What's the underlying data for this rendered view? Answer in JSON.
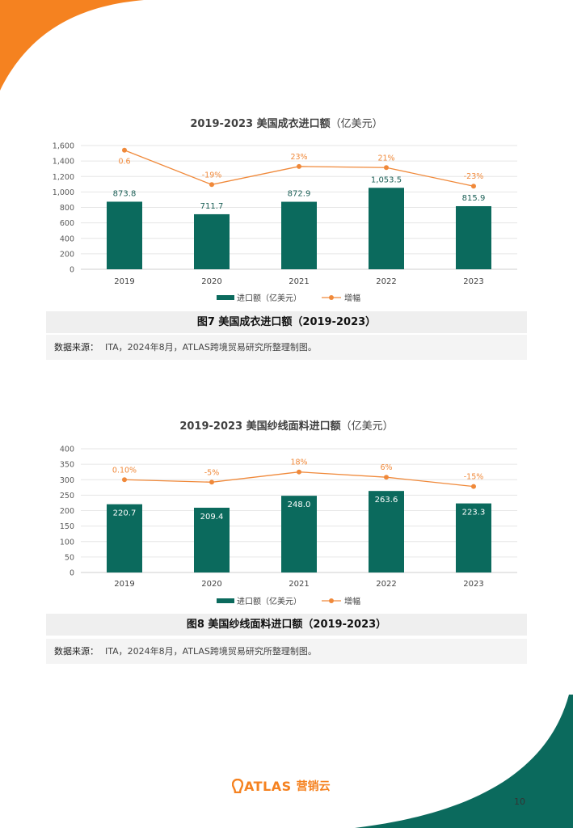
{
  "page": {
    "number": "10"
  },
  "logo": {
    "brand": "ATLAS",
    "sub": "营销云"
  },
  "colors": {
    "bar": "#0b6a5d",
    "line": "#f0893a",
    "corner_orange": "#f58220",
    "corner_teal": "#0b6a5d"
  },
  "charts": [
    {
      "title": "2019-2023 美国成衣进口额",
      "title_unit": "（亿美元）",
      "caption": "图7 美国成衣进口额（2019-2023）",
      "source_label": "数据来源：",
      "source_text": "ITA，2024年8月，ATLAS跨境贸易研究所整理制图。",
      "legend_bar": "进口额（亿美元）",
      "legend_line": "增幅"
    },
    {
      "title": "2019-2023 美国纱线面料进口额",
      "title_unit": "（亿美元）",
      "caption": "图8 美国纱线面料进口额（2019-2023）",
      "source_label": "数据来源：",
      "source_text": "ITA，2024年8月，ATLAS跨境贸易研究所整理制图。",
      "legend_bar": "进口额（亿美元）",
      "legend_line": "增幅"
    }
  ],
  "chart_data": [
    {
      "type": "bar",
      "title": "2019-2023 美国成衣进口额（亿美元）",
      "categories": [
        "2019",
        "2020",
        "2021",
        "2022",
        "2023"
      ],
      "series": [
        {
          "name": "进口额（亿美元）",
          "type": "bar",
          "values": [
            873.8,
            711.7,
            872.9,
            1053.5,
            815.9
          ],
          "labels": [
            "873.8",
            "711.7",
            "872.9",
            "1,053.5",
            "815.9"
          ]
        },
        {
          "name": "增幅",
          "type": "line",
          "labels": [
            "0.6",
            "-19%",
            "23%",
            "21%",
            "-23%"
          ],
          "y_on_left_axis": [
            1540,
            1095,
            1330,
            1315,
            1075
          ]
        }
      ],
      "ylim": [
        0,
        1600
      ],
      "yticks": [
        0,
        200,
        400,
        600,
        800,
        1000,
        1200,
        1400,
        1600
      ],
      "ytick_labels": [
        "0",
        "200",
        "400",
        "600",
        "800",
        "1,000",
        "1,200",
        "1,400",
        "1,600"
      ],
      "grid": true,
      "legend": "bottom"
    },
    {
      "type": "bar",
      "title": "2019-2023 美国纱线面料进口额（亿美元）",
      "categories": [
        "2019",
        "2020",
        "2021",
        "2022",
        "2023"
      ],
      "series": [
        {
          "name": "进口额（亿美元）",
          "type": "bar",
          "values": [
            220.7,
            209.4,
            248.0,
            263.6,
            223.3
          ],
          "labels": [
            "220.7",
            "209.4",
            "248.0",
            "263.6",
            "223.3"
          ]
        },
        {
          "name": "增幅",
          "type": "line",
          "labels": [
            "0.10%",
            "-5%",
            "18%",
            "6%",
            "-15%"
          ],
          "y_on_left_axis": [
            300,
            292,
            325,
            308,
            278
          ]
        }
      ],
      "ylim": [
        0,
        400
      ],
      "yticks": [
        0,
        50,
        100,
        150,
        200,
        250,
        300,
        350,
        400
      ],
      "ytick_labels": [
        "0",
        "50",
        "100",
        "150",
        "200",
        "250",
        "300",
        "350",
        "400"
      ],
      "grid": true,
      "legend": "bottom"
    }
  ]
}
